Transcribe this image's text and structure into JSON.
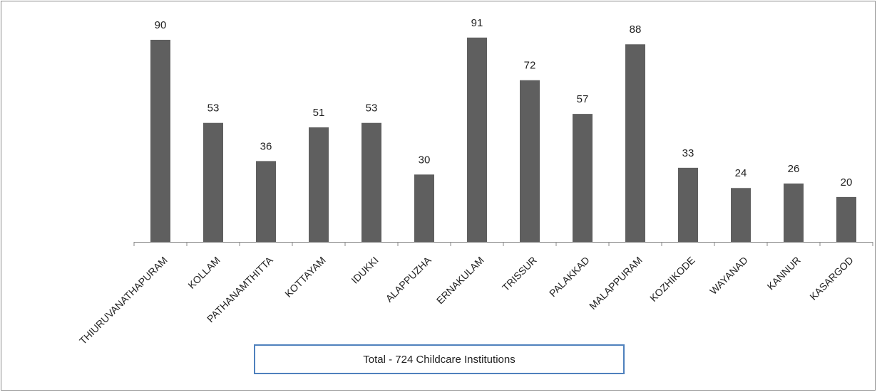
{
  "chart_data": {
    "type": "bar",
    "categories": [
      "THIURUVANATHAPURAM",
      "KOLLAM",
      "PATHANAMTHITTA",
      "KOTTAYAM",
      "IDUKKI",
      "ALAPPUZHA",
      "ERNAKULAM",
      "TRISSUR",
      "PALAKKAD",
      "MALAPPURAM",
      "KOZHIKODE",
      "WAYANAD",
      "KANNUR",
      "KASARGOD"
    ],
    "values": [
      90,
      53,
      36,
      51,
      53,
      30,
      91,
      72,
      57,
      88,
      33,
      24,
      26,
      20
    ],
    "color": "#5f5f5f",
    "ylim": [
      0,
      100
    ],
    "annotation": "Total - 724 Childcare Institutions"
  }
}
